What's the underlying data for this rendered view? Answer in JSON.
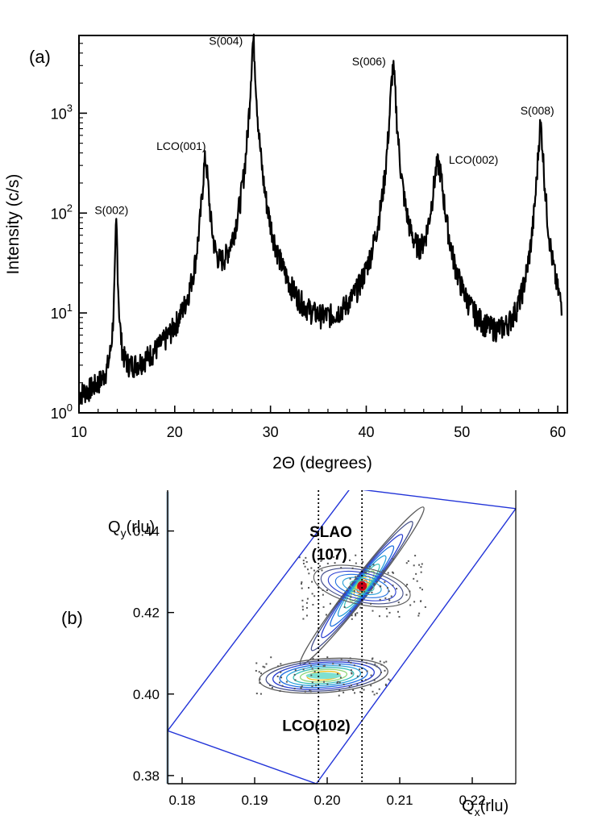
{
  "chart_data": [
    {
      "panel_label": "(a)",
      "type": "line",
      "xlabel": "2Θ (degrees)",
      "ylabel": "Intensity (c/s)",
      "yscale": "log",
      "xlim": [
        10,
        61
      ],
      "ylim": [
        1,
        6000
      ],
      "xticks": [
        10,
        20,
        30,
        40,
        50,
        60
      ],
      "yticks": [
        {
          "value": 1,
          "base": "10",
          "exp": "0"
        },
        {
          "value": 10,
          "base": "10",
          "exp": "1"
        },
        {
          "value": 100,
          "base": "10",
          "exp": "2"
        },
        {
          "value": 1000,
          "base": "10",
          "exp": "3"
        }
      ],
      "peaks": [
        {
          "label": "S(002)",
          "x": 13.9,
          "y": 75,
          "width": 0.12
        },
        {
          "label": "LCO(001)",
          "x": 23.2,
          "y": 330,
          "width": 0.35
        },
        {
          "label": "S(004)",
          "x": 28.2,
          "y": 5200,
          "width": 0.25
        },
        {
          "label": "S(006)",
          "x": 42.8,
          "y": 2800,
          "width": 0.3
        },
        {
          "label": "LCO(002)",
          "x": 47.5,
          "y": 300,
          "width": 0.6
        },
        {
          "label": "S(008)",
          "x": 58.2,
          "y": 750,
          "width": 0.3
        }
      ]
    },
    {
      "panel_label": "(b)",
      "type": "heatmap",
      "xlabel_main": "Q",
      "xlabel_sub": "x",
      "xlabel_unit": "(rlu)",
      "ylabel_main": "Q",
      "ylabel_sub": "y",
      "ylabel_unit": "(rlu)",
      "xlim": [
        0.178,
        0.226
      ],
      "ylim": [
        0.378,
        0.45
      ],
      "xticks": [
        0.18,
        0.19,
        0.2,
        0.21,
        0.22
      ],
      "xtick_labels": [
        "0.18",
        "0.19",
        "0.20",
        "0.21",
        "0.22"
      ],
      "yticks": [
        0.38,
        0.4,
        0.42,
        0.44
      ],
      "ytick_labels": [
        "0.38",
        "0.40",
        "0.42",
        "0.44"
      ],
      "dotted_lines_x": [
        0.1988,
        0.2048
      ],
      "scan_boundary": [
        [
          0.178,
          0.391
        ],
        [
          0.1985,
          0.378
        ],
        [
          0.226,
          0.4455
        ],
        [
          0.2032,
          0.4505
        ]
      ],
      "annotations": [
        {
          "text": "SLAO",
          "x": 0.2005,
          "y": 0.4385
        },
        {
          "text": "(107)",
          "x": 0.2003,
          "y": 0.433
        },
        {
          "text": "LCO(102)",
          "x": 0.1985,
          "y": 0.391
        }
      ],
      "peaks": [
        {
          "name": "SLAO(107)",
          "qx": 0.2048,
          "qy": 0.4265
        },
        {
          "name": "LCO(102)",
          "qx": 0.1995,
          "qy": 0.4045
        }
      ]
    }
  ]
}
